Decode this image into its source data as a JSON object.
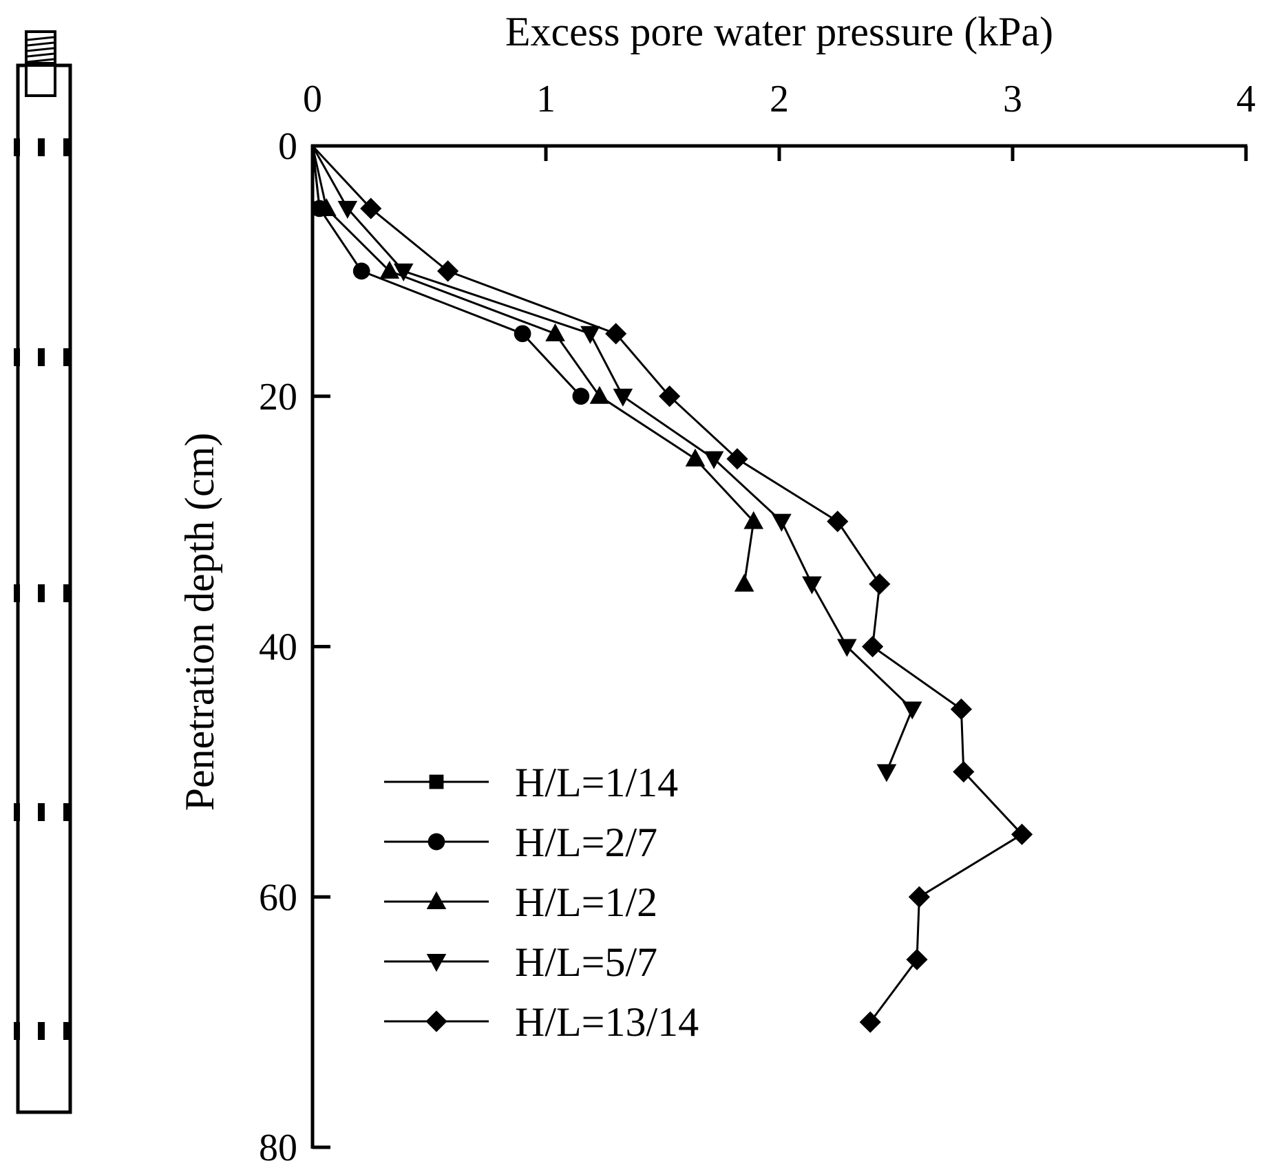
{
  "chart_data": {
    "type": "line",
    "title": "",
    "xlabel": "Excess pore water pressure (kPa)",
    "ylabel": "Penetration depth (cm)",
    "x_axis_position": "top",
    "y_axis_inverted": true,
    "xlim": [
      0,
      4
    ],
    "ylim": [
      0,
      80
    ],
    "xticks": [
      "0",
      "1",
      "2",
      "3",
      "4"
    ],
    "yticks": [
      "0",
      "20",
      "40",
      "60",
      "80"
    ],
    "grid": false,
    "legend_position": "bottom-left",
    "colors": {
      "line": "#000000",
      "background": "#ffffff"
    },
    "series": [
      {
        "name": "H/L=1/14",
        "marker": "square",
        "points": [
          [
            0,
            0
          ],
          [
            0.03,
            5
          ]
        ]
      },
      {
        "name": "H/L=2/7",
        "marker": "circle",
        "points": [
          [
            0,
            0
          ],
          [
            0.03,
            5
          ],
          [
            0.21,
            10
          ],
          [
            0.9,
            15
          ],
          [
            1.15,
            20
          ]
        ]
      },
      {
        "name": "H/L=1/2",
        "marker": "triangle-up",
        "points": [
          [
            0,
            0
          ],
          [
            0.06,
            5
          ],
          [
            0.33,
            10
          ],
          [
            1.04,
            15
          ],
          [
            1.23,
            20
          ],
          [
            1.64,
            25
          ],
          [
            1.89,
            30
          ],
          [
            1.85,
            35
          ]
        ]
      },
      {
        "name": "H/L=5/7",
        "marker": "triangle-down",
        "points": [
          [
            0,
            0
          ],
          [
            0.15,
            5
          ],
          [
            0.39,
            10
          ],
          [
            1.19,
            15
          ],
          [
            1.33,
            20
          ],
          [
            1.72,
            25
          ],
          [
            2.01,
            30
          ],
          [
            2.14,
            35
          ],
          [
            2.29,
            40
          ],
          [
            2.57,
            45
          ],
          [
            2.46,
            50
          ]
        ]
      },
      {
        "name": "H/L=13/14",
        "marker": "diamond",
        "points": [
          [
            0,
            0
          ],
          [
            0.25,
            5
          ],
          [
            0.58,
            10
          ],
          [
            1.3,
            15
          ],
          [
            1.53,
            20
          ],
          [
            1.82,
            25
          ],
          [
            2.25,
            30
          ],
          [
            2.43,
            35
          ],
          [
            2.4,
            40
          ],
          [
            2.78,
            45
          ],
          [
            2.79,
            50
          ],
          [
            3.04,
            55
          ],
          [
            2.6,
            60
          ],
          [
            2.59,
            65
          ],
          [
            2.39,
            70
          ]
        ]
      }
    ]
  },
  "probe": {
    "port_rows": 5
  }
}
